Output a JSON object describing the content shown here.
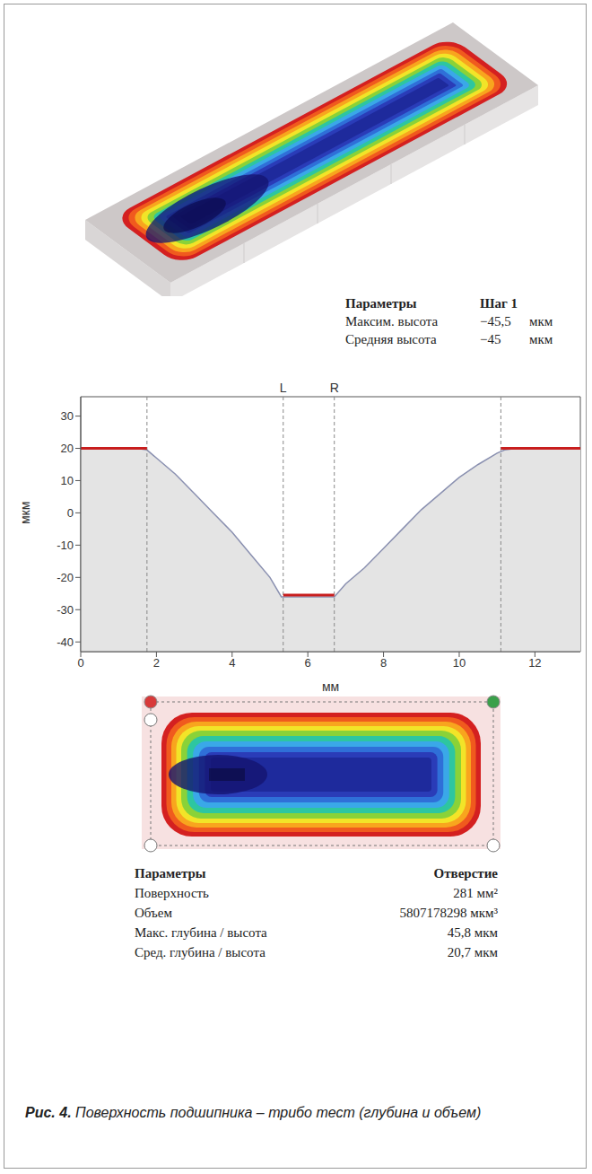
{
  "panel_3d": {
    "header": [
      "Параметры",
      "Шаг 1"
    ],
    "rows": [
      [
        "Максим. высота",
        "−45,5",
        "мкм"
      ],
      [
        "Средняя высота",
        "−45",
        "мкм"
      ]
    ]
  },
  "chart_data": {
    "type": "line",
    "x_label": "мм",
    "y_label": "мкм",
    "x": [
      0,
      0.5,
      1,
      1.5,
      1.75,
      2,
      2.5,
      3,
      3.5,
      4,
      4.5,
      5,
      5.3,
      5.5,
      6,
      6.5,
      6.7,
      7,
      7.5,
      8,
      8.5,
      9,
      9.5,
      10,
      10.5,
      11,
      11.2,
      11.5,
      12,
      12.5,
      13.2
    ],
    "values": [
      20,
      20,
      20,
      20,
      19.5,
      17,
      12,
      6,
      0,
      -6,
      -13,
      -20,
      -26,
      -26,
      -26,
      -26,
      -26,
      -22,
      -17,
      -11,
      -5,
      1,
      6,
      11,
      15,
      18.5,
      19.5,
      20,
      20,
      20,
      20
    ],
    "color": "#8a90b0",
    "xlim": [
      0,
      13.2
    ],
    "ylim": [
      -43,
      36
    ],
    "xticks": [
      0,
      2,
      4,
      6,
      8,
      10,
      12
    ],
    "yticks": [
      -40,
      -30,
      -20,
      -10,
      0,
      10,
      20,
      30
    ],
    "reference_segments": [
      {
        "x": [
          0,
          1.75
        ],
        "y": 20,
        "color": "#c81e1e"
      },
      {
        "x": [
          5.35,
          6.7
        ],
        "y": -25.5,
        "color": "#c81e1e"
      },
      {
        "x": [
          11.1,
          13.2
        ],
        "y": 20,
        "color": "#c81e1e"
      }
    ],
    "markers": [
      {
        "x": 1.75
      },
      {
        "x": 5.35,
        "label": "L"
      },
      {
        "x": 6.7,
        "label": "R"
      },
      {
        "x": 11.1
      }
    ]
  },
  "panel_top": {
    "header": [
      "Параметры",
      "Отверстие"
    ],
    "rows": [
      [
        "Поверхность",
        "281 мм²"
      ],
      [
        "Объем",
        "5807178298 мкм³"
      ],
      [
        "Макс. глубина / высота",
        "45,8 мкм"
      ],
      [
        "Сред. глубина / высота",
        "20,7 мкм"
      ]
    ]
  },
  "caption": {
    "label": "Рис. 4.",
    "text": "Поверхность подшипника – трибо тест (глубина и объем)"
  }
}
